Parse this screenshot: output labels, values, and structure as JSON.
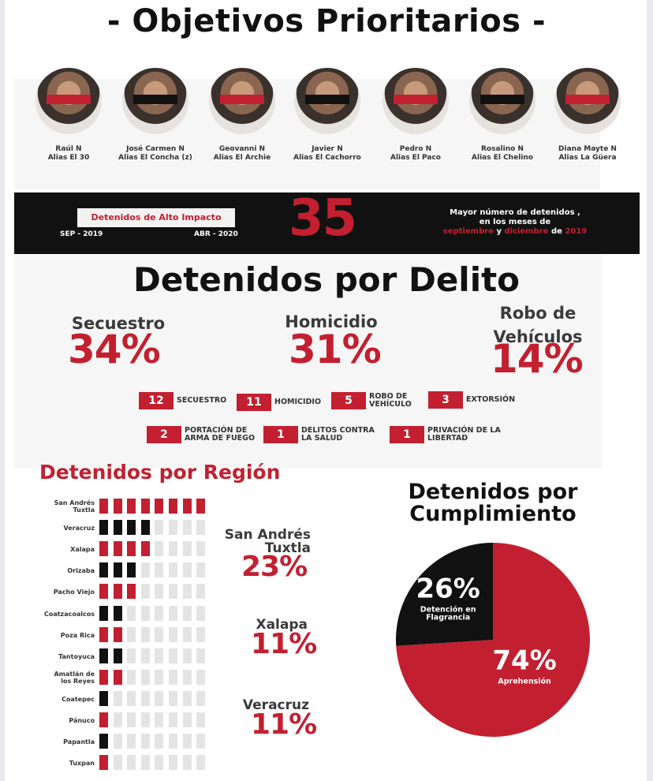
{
  "header": {
    "title": "- Objetivos Prioritarios -"
  },
  "profiles": [
    {
      "name": "Raúl N",
      "alias": "Alias El 30",
      "bar_color": "#c22030"
    },
    {
      "name": "José Carmen N",
      "alias": "Alias El Concha (z)",
      "bar_color": "#111111"
    },
    {
      "name": "Geovanni N",
      "alias": "Alias El Archie",
      "bar_color": "#c22030"
    },
    {
      "name": "Javier N",
      "alias": "Alias El Cachorro",
      "bar_color": "#111111"
    },
    {
      "name": "Pedro N",
      "alias": "Alias El Paco",
      "bar_color": "#c22030"
    },
    {
      "name": "Rosalino N",
      "alias": "Alias El Chelino",
      "bar_color": "#111111"
    },
    {
      "name": "Diana Mayte N",
      "alias": "Alias La Güera",
      "bar_color": "#c22030"
    }
  ],
  "banner": {
    "tag": "Detenidos de Alto Impacto",
    "from": "SEP - 2019",
    "to": "ABR - 2020",
    "big_number": "35",
    "note_line1": "Mayor número de detenidos ,",
    "note_line2": "en los meses de",
    "note_month1": "septiembre",
    "note_and": "y",
    "note_month2": "diciembre",
    "note_de": "de",
    "note_year": "2019"
  },
  "delito": {
    "title": "Detenidos por Delito",
    "stats": [
      {
        "label": "Secuestro",
        "pct": "34%"
      },
      {
        "label": "Homicidio",
        "pct": "31%"
      },
      {
        "label": "Robo de\nVehículos",
        "pct": "14%"
      }
    ],
    "counts": [
      {
        "value": "12",
        "label": "SECUESTRO"
      },
      {
        "value": "11",
        "label": "HOMICIDIO"
      },
      {
        "value": "5",
        "label": "ROBO DE\nVEHÍCULO"
      },
      {
        "value": "3",
        "label": "EXTORSIÓN"
      },
      {
        "value": "2",
        "label": "PORTACIÓN DE\nARMA DE FUEGO"
      },
      {
        "value": "1",
        "label": "DELITOS CONTRA\nLA SALUD"
      },
      {
        "value": "1",
        "label": "PRIVACIÓN DE LA\nLIBERTAD"
      }
    ]
  },
  "region": {
    "title": "Detenidos por Región",
    "top": [
      {
        "label": "San Andrés\nTuxtla",
        "pct": "23%"
      },
      {
        "label": "Xalapa",
        "pct": "11%"
      },
      {
        "label": "Veracruz",
        "pct": "11%"
      }
    ]
  },
  "cumplimiento": {
    "title": "Detenidos por\nCumplimiento"
  },
  "colors": {
    "accent_red": "#c22030",
    "black": "#111111",
    "empty_cell": "#e4e4e4"
  },
  "chart_data": [
    {
      "type": "bar",
      "title": "Detenidos por Región",
      "categories": [
        "San Andrés\nTuxtla",
        "Veracruz",
        "Xalapa",
        "Orizaba",
        "Pacho Viejo",
        "Coatzacoalcos",
        "Poza Rica",
        "Tantoyuca",
        "Amatlán de\nlos Reyes",
        "Coatepec",
        "Pánuco",
        "Papantla",
        "Tuxpan"
      ],
      "values": [
        8,
        4,
        4,
        3,
        3,
        2,
        2,
        2,
        2,
        1,
        1,
        1,
        1
      ],
      "bar_colors": [
        "#c22030",
        "#111111",
        "#c22030",
        "#111111",
        "#c22030",
        "#111111",
        "#c22030",
        "#111111",
        "#c22030",
        "#111111",
        "#c22030",
        "#111111",
        "#c22030"
      ],
      "max_cells": 8
    },
    {
      "type": "pie",
      "title": "Detenidos por\nCumplimiento",
      "slices": [
        {
          "label": "Aprehensión",
          "pct_label": "74%",
          "value": 74,
          "color": "#c22030"
        },
        {
          "label": "Detención en\nFlagrancia",
          "pct_label": "26%",
          "value": 26,
          "color": "#111111"
        }
      ]
    }
  ]
}
